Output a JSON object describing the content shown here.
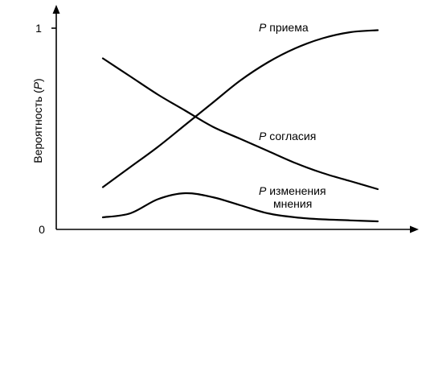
{
  "chart_data": {
    "type": "line",
    "title": "",
    "xlabel": "",
    "ylabel": "Вероятность (P)",
    "ylabel_parts": {
      "prefix": "Вероятность (",
      "symbol": "P",
      "suffix": ")"
    },
    "ylim": [
      0,
      1
    ],
    "xlim": [
      0,
      1
    ],
    "yticks": [
      {
        "value": 0,
        "label": "0"
      },
      {
        "value": 1,
        "label": "1"
      }
    ],
    "grid": false,
    "legend": "none",
    "series": [
      {
        "name": "P приема",
        "label_parts": [
          {
            "symbol": "P",
            "text": " приема"
          }
        ],
        "x": [
          0,
          0.1,
          0.2,
          0.3,
          0.4,
          0.5,
          0.6,
          0.7,
          0.8,
          0.9,
          1
        ],
        "values": [
          0.21,
          0.31,
          0.41,
          0.52,
          0.63,
          0.74,
          0.83,
          0.9,
          0.95,
          0.98,
          0.99
        ]
      },
      {
        "name": "P согласия",
        "label_parts": [
          {
            "symbol": "P",
            "text": " согласия"
          }
        ],
        "x": [
          0,
          0.1,
          0.2,
          0.3,
          0.4,
          0.5,
          0.6,
          0.7,
          0.8,
          0.9,
          1
        ],
        "values": [
          0.85,
          0.76,
          0.67,
          0.59,
          0.51,
          0.45,
          0.39,
          0.33,
          0.28,
          0.24,
          0.2
        ]
      },
      {
        "name": "P изменения мнения",
        "label_parts": [
          {
            "symbol": "P",
            "text": " изменения"
          },
          {
            "symbol": "",
            "text": "мнения"
          }
        ],
        "x": [
          0,
          0.1,
          0.2,
          0.3,
          0.4,
          0.5,
          0.6,
          0.7,
          0.8,
          0.9,
          1
        ],
        "values": [
          0.06,
          0.08,
          0.15,
          0.18,
          0.16,
          0.12,
          0.08,
          0.06,
          0.05,
          0.045,
          0.04
        ]
      }
    ]
  }
}
